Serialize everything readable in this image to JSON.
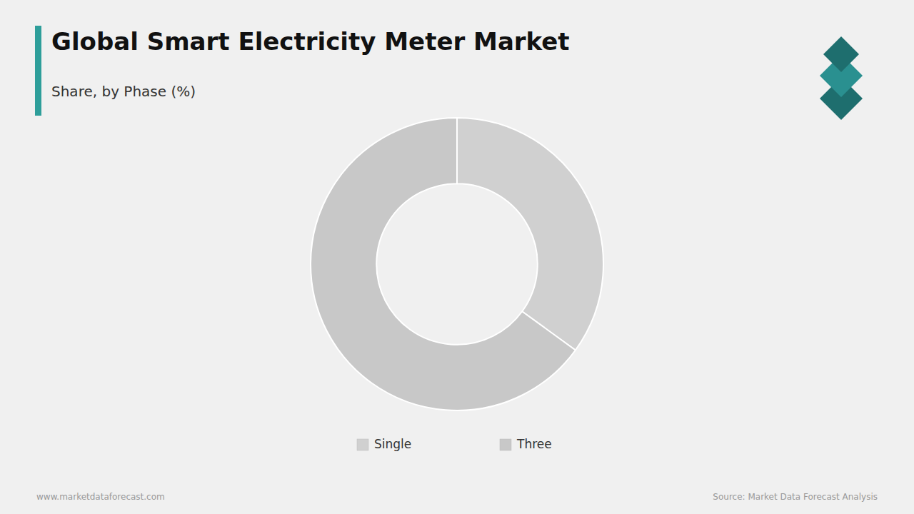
{
  "chart_data": {
    "type": "pie",
    "title": "Global Smart Electricity Meter Market",
    "subtitle": "Share, by Phase (%)",
    "categories": [
      "Single",
      "Three"
    ],
    "values": [
      35,
      65
    ],
    "colors": [
      "#d0d0d0",
      "#c8c8c8"
    ],
    "legend": "bottom",
    "annotations": [
      "www.marketdataforecast.com",
      "Source: Market Data Forecast Analysis"
    ]
  }
}
